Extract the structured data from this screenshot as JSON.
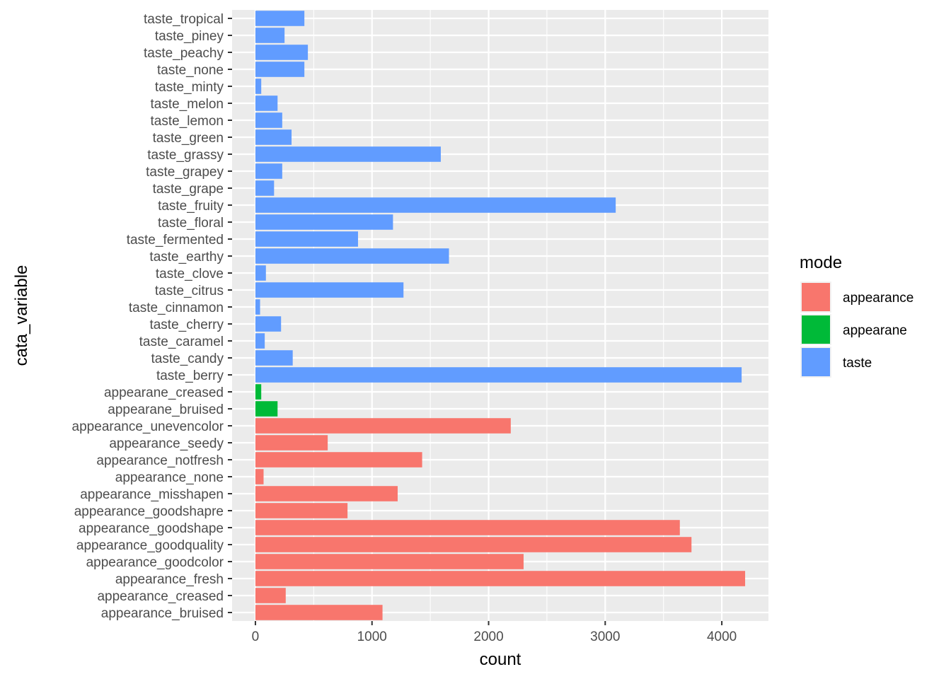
{
  "chart_data": {
    "type": "bar",
    "orientation": "horizontal",
    "xlabel": "count",
    "ylabel": "cata_variable",
    "xlim": [
      -200,
      4400
    ],
    "x_ticks": [
      0,
      1000,
      2000,
      3000,
      4000
    ],
    "grid": true,
    "legend_position": "right",
    "legend": {
      "title": "mode",
      "entries": [
        {
          "label": "appearance",
          "color": "#F8766D"
        },
        {
          "label": "appearane",
          "color": "#00BA38"
        },
        {
          "label": "taste",
          "color": "#619CFF"
        }
      ]
    },
    "categories": [
      "appearance_bruised",
      "appearance_creased",
      "appearance_fresh",
      "appearance_goodcolor",
      "appearance_goodquality",
      "appearance_goodshape",
      "appearance_goodshapre",
      "appearance_misshapen",
      "appearance_none",
      "appearance_notfresh",
      "appearance_seedy",
      "appearance_unevencolor",
      "appearane_bruised",
      "appearane_creased",
      "taste_berry",
      "taste_candy",
      "taste_caramel",
      "taste_cherry",
      "taste_cinnamon",
      "taste_citrus",
      "taste_clove",
      "taste_earthy",
      "taste_fermented",
      "taste_floral",
      "taste_fruity",
      "taste_grape",
      "taste_grapey",
      "taste_grassy",
      "taste_green",
      "taste_lemon",
      "taste_melon",
      "taste_minty",
      "taste_none",
      "taste_peachy",
      "taste_piney",
      "taste_tropical"
    ],
    "values": [
      1090,
      260,
      4200,
      2300,
      3740,
      3640,
      790,
      1220,
      70,
      1430,
      620,
      2190,
      190,
      50,
      4170,
      320,
      80,
      220,
      40,
      1270,
      90,
      1660,
      880,
      1180,
      3090,
      160,
      230,
      1590,
      310,
      230,
      190,
      50,
      420,
      450,
      250,
      420
    ],
    "modes": [
      "appearance",
      "appearance",
      "appearance",
      "appearance",
      "appearance",
      "appearance",
      "appearance",
      "appearance",
      "appearance",
      "appearance",
      "appearance",
      "appearance",
      "appearane",
      "appearane",
      "taste",
      "taste",
      "taste",
      "taste",
      "taste",
      "taste",
      "taste",
      "taste",
      "taste",
      "taste",
      "taste",
      "taste",
      "taste",
      "taste",
      "taste",
      "taste",
      "taste",
      "taste",
      "taste",
      "taste",
      "taste",
      "taste"
    ]
  }
}
